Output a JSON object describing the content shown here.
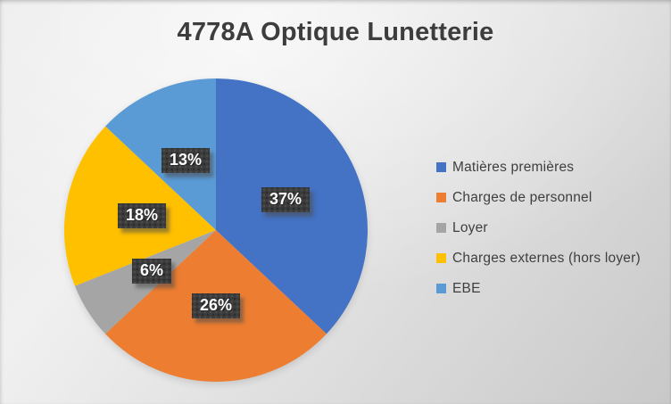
{
  "chart_data": {
    "type": "pie",
    "title": "4778A Optique Lunetterie",
    "unit": "%",
    "start_angle_deg": 0,
    "direction": "clockwise",
    "legend_position": "right",
    "series": [
      {
        "name": "Matières premières",
        "value": 37,
        "label": "37%",
        "color": "#4472C4"
      },
      {
        "name": "Charges de personnel",
        "value": 26,
        "label": "26%",
        "color": "#ED7D31"
      },
      {
        "name": "Loyer",
        "value": 6,
        "label": "6%",
        "color": "#A5A5A5"
      },
      {
        "name": "Charges externes (hors loyer)",
        "value": 18,
        "label": "18%",
        "color": "#FFC000"
      },
      {
        "name": "EBE",
        "value": 13,
        "label": "13%",
        "color": "#5B9BD5"
      }
    ],
    "data_label_style": {
      "background": "#3C3C3C",
      "text_color": "#FFFFFF"
    },
    "title_color": "#3D3D3D",
    "legend_text_color": "#3F3F3F",
    "background": "gray-gradient-slide"
  }
}
